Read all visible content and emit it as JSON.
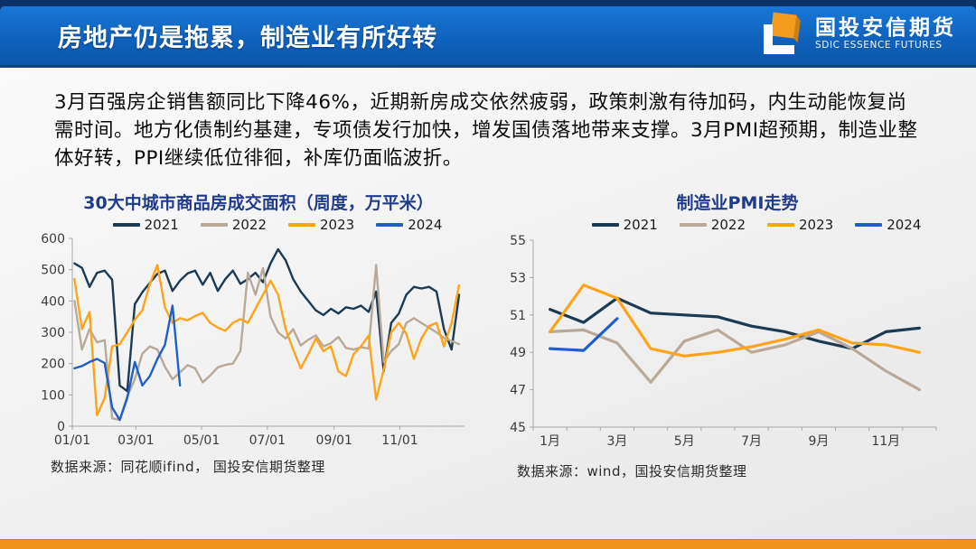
{
  "header": {
    "title": "房地产仍是拖累，制造业有所好转",
    "logo_cn": "国投安信期货",
    "logo_en": "SDIC ESSENCE FUTURES"
  },
  "intro": {
    "paragraph": "3月百强房企销售额同比下降46%，近期新房成交依然疲弱，政策刺激有待加码，内生动能恢复尚需时间。地方化债制约基建，专项债发行加快，增发国债落地带来支撑。3月PMI超预期，制造业整体好转，PPI继续低位徘徊，补库仍面临波折。"
  },
  "colors": {
    "accent_bar": "#f0931d",
    "chart_title": "#1f3c8a",
    "header_top": "#0c3367",
    "header_grad_start": "#1a78d6",
    "header_grad_end": "#0b57ab",
    "series_2021": "#1c3a52",
    "series_2022": "#b8a998",
    "series_2023": "#ffa319",
    "series_2024": "#1f5fc8"
  },
  "sources": {
    "left": "数据来源：同花顺ifind， 国投安信期货整理",
    "right": "数据来源：wind，国投安信期货整理"
  },
  "chart_data": [
    {
      "type": "line",
      "title": "30大中城市商品房成交面积（周度，万平米）",
      "xlabel": "",
      "ylabel": "",
      "x_mode": "day_of_year_weekly",
      "xlim": [
        1,
        365
      ],
      "ylim": [
        0,
        600
      ],
      "yticks": [
        0,
        100,
        200,
        300,
        400,
        500,
        600
      ],
      "xtick_marks": [
        1,
        60,
        121,
        182,
        244,
        305
      ],
      "xtick_labels": [
        {
          "pos": 1,
          "label": "01/01"
        },
        {
          "pos": 60,
          "label": "03/01"
        },
        {
          "pos": 121,
          "label": "05/01"
        },
        {
          "pos": 182,
          "label": "07/01"
        },
        {
          "pos": 244,
          "label": "09/01"
        },
        {
          "pos": 305,
          "label": "11/01"
        }
      ],
      "grid": false,
      "legend_position": "top",
      "series": [
        {
          "name": "2021",
          "color": "#1c3a52",
          "x": [
            3,
            10,
            17,
            24,
            31,
            38,
            45,
            52,
            59,
            66,
            73,
            80,
            87,
            94,
            101,
            108,
            115,
            122,
            129,
            136,
            143,
            150,
            157,
            164,
            171,
            178,
            185,
            192,
            199,
            206,
            213,
            220,
            227,
            234,
            241,
            248,
            255,
            262,
            269,
            276,
            283,
            290,
            297,
            304,
            311,
            318,
            325,
            332,
            339,
            346,
            353,
            360
          ],
          "y": [
            520,
            506,
            445,
            490,
            497,
            468,
            130,
            112,
            390,
            428,
            458,
            487,
            497,
            432,
            465,
            488,
            497,
            452,
            490,
            432,
            470,
            497,
            455,
            470,
            490,
            460,
            520,
            565,
            530,
            470,
            430,
            400,
            370,
            355,
            375,
            360,
            380,
            375,
            385,
            365,
            430,
            175,
            330,
            360,
            420,
            445,
            440,
            445,
            430,
            310,
            245,
            420
          ]
        },
        {
          "name": "2022",
          "color": "#b8a998",
          "x": [
            3,
            10,
            17,
            24,
            31,
            38,
            45,
            52,
            59,
            66,
            73,
            80,
            87,
            94,
            101,
            108,
            115,
            122,
            129,
            136,
            143,
            150,
            157,
            164,
            171,
            178,
            185,
            192,
            199,
            206,
            213,
            220,
            227,
            234,
            241,
            248,
            255,
            262,
            269,
            276,
            283,
            290,
            297,
            304,
            311,
            318,
            325,
            332,
            339,
            346,
            353,
            360
          ],
          "y": [
            400,
            245,
            310,
            268,
            275,
            25,
            20,
            95,
            150,
            232,
            255,
            245,
            190,
            150,
            172,
            195,
            185,
            140,
            162,
            188,
            196,
            200,
            240,
            490,
            420,
            505,
            350,
            300,
            280,
            310,
            258,
            276,
            290,
            255,
            265,
            285,
            250,
            245,
            252,
            248,
            515,
            205,
            240,
            262,
            330,
            345,
            330,
            315,
            300,
            282,
            272,
            262
          ]
        },
        {
          "name": "2023",
          "color": "#ffa319",
          "x": [
            3,
            10,
            17,
            24,
            31,
            38,
            45,
            52,
            59,
            66,
            73,
            80,
            87,
            94,
            101,
            108,
            115,
            122,
            129,
            136,
            143,
            150,
            157,
            164,
            171,
            178,
            185,
            192,
            199,
            206,
            213,
            220,
            227,
            234,
            241,
            248,
            255,
            262,
            269,
            276,
            283,
            290,
            297,
            304,
            311,
            318,
            325,
            332,
            339,
            346,
            353,
            360
          ],
          "y": [
            470,
            310,
            365,
            35,
            90,
            255,
            262,
            300,
            340,
            370,
            455,
            515,
            380,
            330,
            345,
            338,
            352,
            362,
            330,
            315,
            305,
            330,
            342,
            330,
            375,
            420,
            465,
            420,
            310,
            245,
            185,
            230,
            280,
            240,
            255,
            175,
            160,
            230,
            255,
            290,
            85,
            180,
            300,
            330,
            295,
            215,
            280,
            320,
            330,
            255,
            330,
            450
          ]
        },
        {
          "name": "2024",
          "color": "#1f5fc8",
          "x": [
            3,
            10,
            17,
            24,
            31,
            38,
            45,
            52,
            59,
            66,
            73,
            80,
            87,
            94,
            101
          ],
          "y": [
            185,
            192,
            205,
            215,
            202,
            60,
            20,
            90,
            205,
            130,
            160,
            215,
            260,
            385,
            130
          ]
        }
      ]
    },
    {
      "type": "line",
      "title": "制造业PMI走势",
      "xlabel": "",
      "ylabel": "",
      "x_mode": "month",
      "xlim": [
        0.5,
        12.5
      ],
      "ylim": [
        45,
        55
      ],
      "yticks": [
        45,
        47,
        49,
        51,
        53,
        55
      ],
      "xtick_marks": [
        0.5,
        1.5,
        2.5,
        3.5,
        4.5,
        5.5,
        6.5,
        7.5,
        8.5,
        9.5,
        10.5,
        11.5,
        12.5
      ],
      "xtick_labels": [
        {
          "pos": 1,
          "label": "1月"
        },
        {
          "pos": 3,
          "label": "3月"
        },
        {
          "pos": 5,
          "label": "5月"
        },
        {
          "pos": 7,
          "label": "7月"
        },
        {
          "pos": 9,
          "label": "9月"
        },
        {
          "pos": 11,
          "label": "11月"
        }
      ],
      "grid": false,
      "legend_position": "top",
      "series": [
        {
          "name": "2021",
          "color": "#1c3a52",
          "x": [
            1,
            2,
            3,
            4,
            5,
            6,
            7,
            8,
            9,
            10,
            11,
            12
          ],
          "y": [
            51.3,
            50.6,
            51.9,
            51.1,
            51.0,
            50.9,
            50.4,
            50.1,
            49.6,
            49.2,
            50.1,
            50.3
          ]
        },
        {
          "name": "2022",
          "color": "#b8a998",
          "x": [
            1,
            2,
            3,
            4,
            5,
            6,
            7,
            8,
            9,
            10,
            11,
            12
          ],
          "y": [
            50.1,
            50.2,
            49.5,
            47.4,
            49.6,
            50.2,
            49.0,
            49.4,
            50.1,
            49.2,
            48.0,
            47.0
          ]
        },
        {
          "name": "2023",
          "color": "#ffa319",
          "x": [
            1,
            2,
            3,
            4,
            5,
            6,
            7,
            8,
            9,
            10,
            11,
            12
          ],
          "y": [
            50.1,
            52.6,
            51.9,
            49.2,
            48.8,
            49.0,
            49.3,
            49.7,
            50.2,
            49.5,
            49.4,
            49.0
          ]
        },
        {
          "name": "2024",
          "color": "#1f5fc8",
          "x": [
            1,
            2,
            3
          ],
          "y": [
            49.2,
            49.1,
            50.8
          ]
        }
      ]
    }
  ]
}
